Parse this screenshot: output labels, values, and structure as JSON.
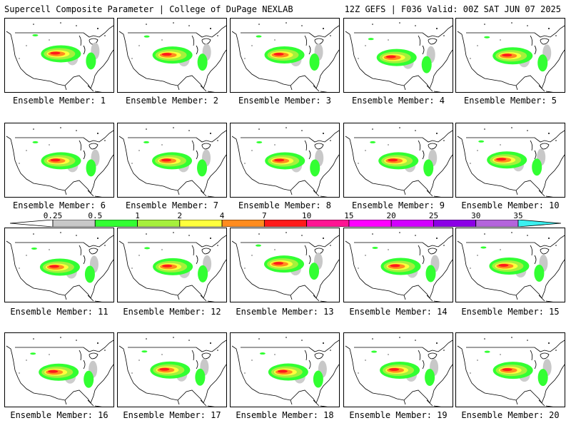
{
  "header": {
    "left_title": "Supercell Composite Parameter | College of DuPage NEXLAB",
    "right_title": "12Z GEFS | F036 Valid: 00Z SAT JUN 07 2025"
  },
  "panels": [
    {
      "label": "Ensemble Member: 1"
    },
    {
      "label": "Ensemble Member: 2"
    },
    {
      "label": "Ensemble Member: 3"
    },
    {
      "label": "Ensemble Member: 4"
    },
    {
      "label": "Ensemble Member: 5"
    },
    {
      "label": "Ensemble Member: 6"
    },
    {
      "label": "Ensemble Member: 7"
    },
    {
      "label": "Ensemble Member: 8"
    },
    {
      "label": "Ensemble Member: 9"
    },
    {
      "label": "Ensemble Member: 10"
    },
    {
      "label": "Ensemble Member: 11"
    },
    {
      "label": "Ensemble Member: 12"
    },
    {
      "label": "Ensemble Member: 13"
    },
    {
      "label": "Ensemble Member: 14"
    },
    {
      "label": "Ensemble Member: 15"
    },
    {
      "label": "Ensemble Member: 16"
    },
    {
      "label": "Ensemble Member: 17"
    },
    {
      "label": "Ensemble Member: 18"
    },
    {
      "label": "Ensemble Member: 19"
    },
    {
      "label": "Ensemble Member: 20"
    }
  ],
  "colorbar": {
    "ticks": [
      "0.25",
      "0.5",
      "1",
      "2",
      "4",
      "7",
      "10",
      "15",
      "20",
      "25",
      "30",
      "35"
    ],
    "colors": [
      "#c8c8c8",
      "#32ff32",
      "#a6f03c",
      "#ffff3c",
      "#ff8c1e",
      "#ff1a1a",
      "#ff1493",
      "#ff00ff",
      "#d200ff",
      "#8c00e6",
      "#b464dc",
      "#3cf0f0"
    ]
  }
}
